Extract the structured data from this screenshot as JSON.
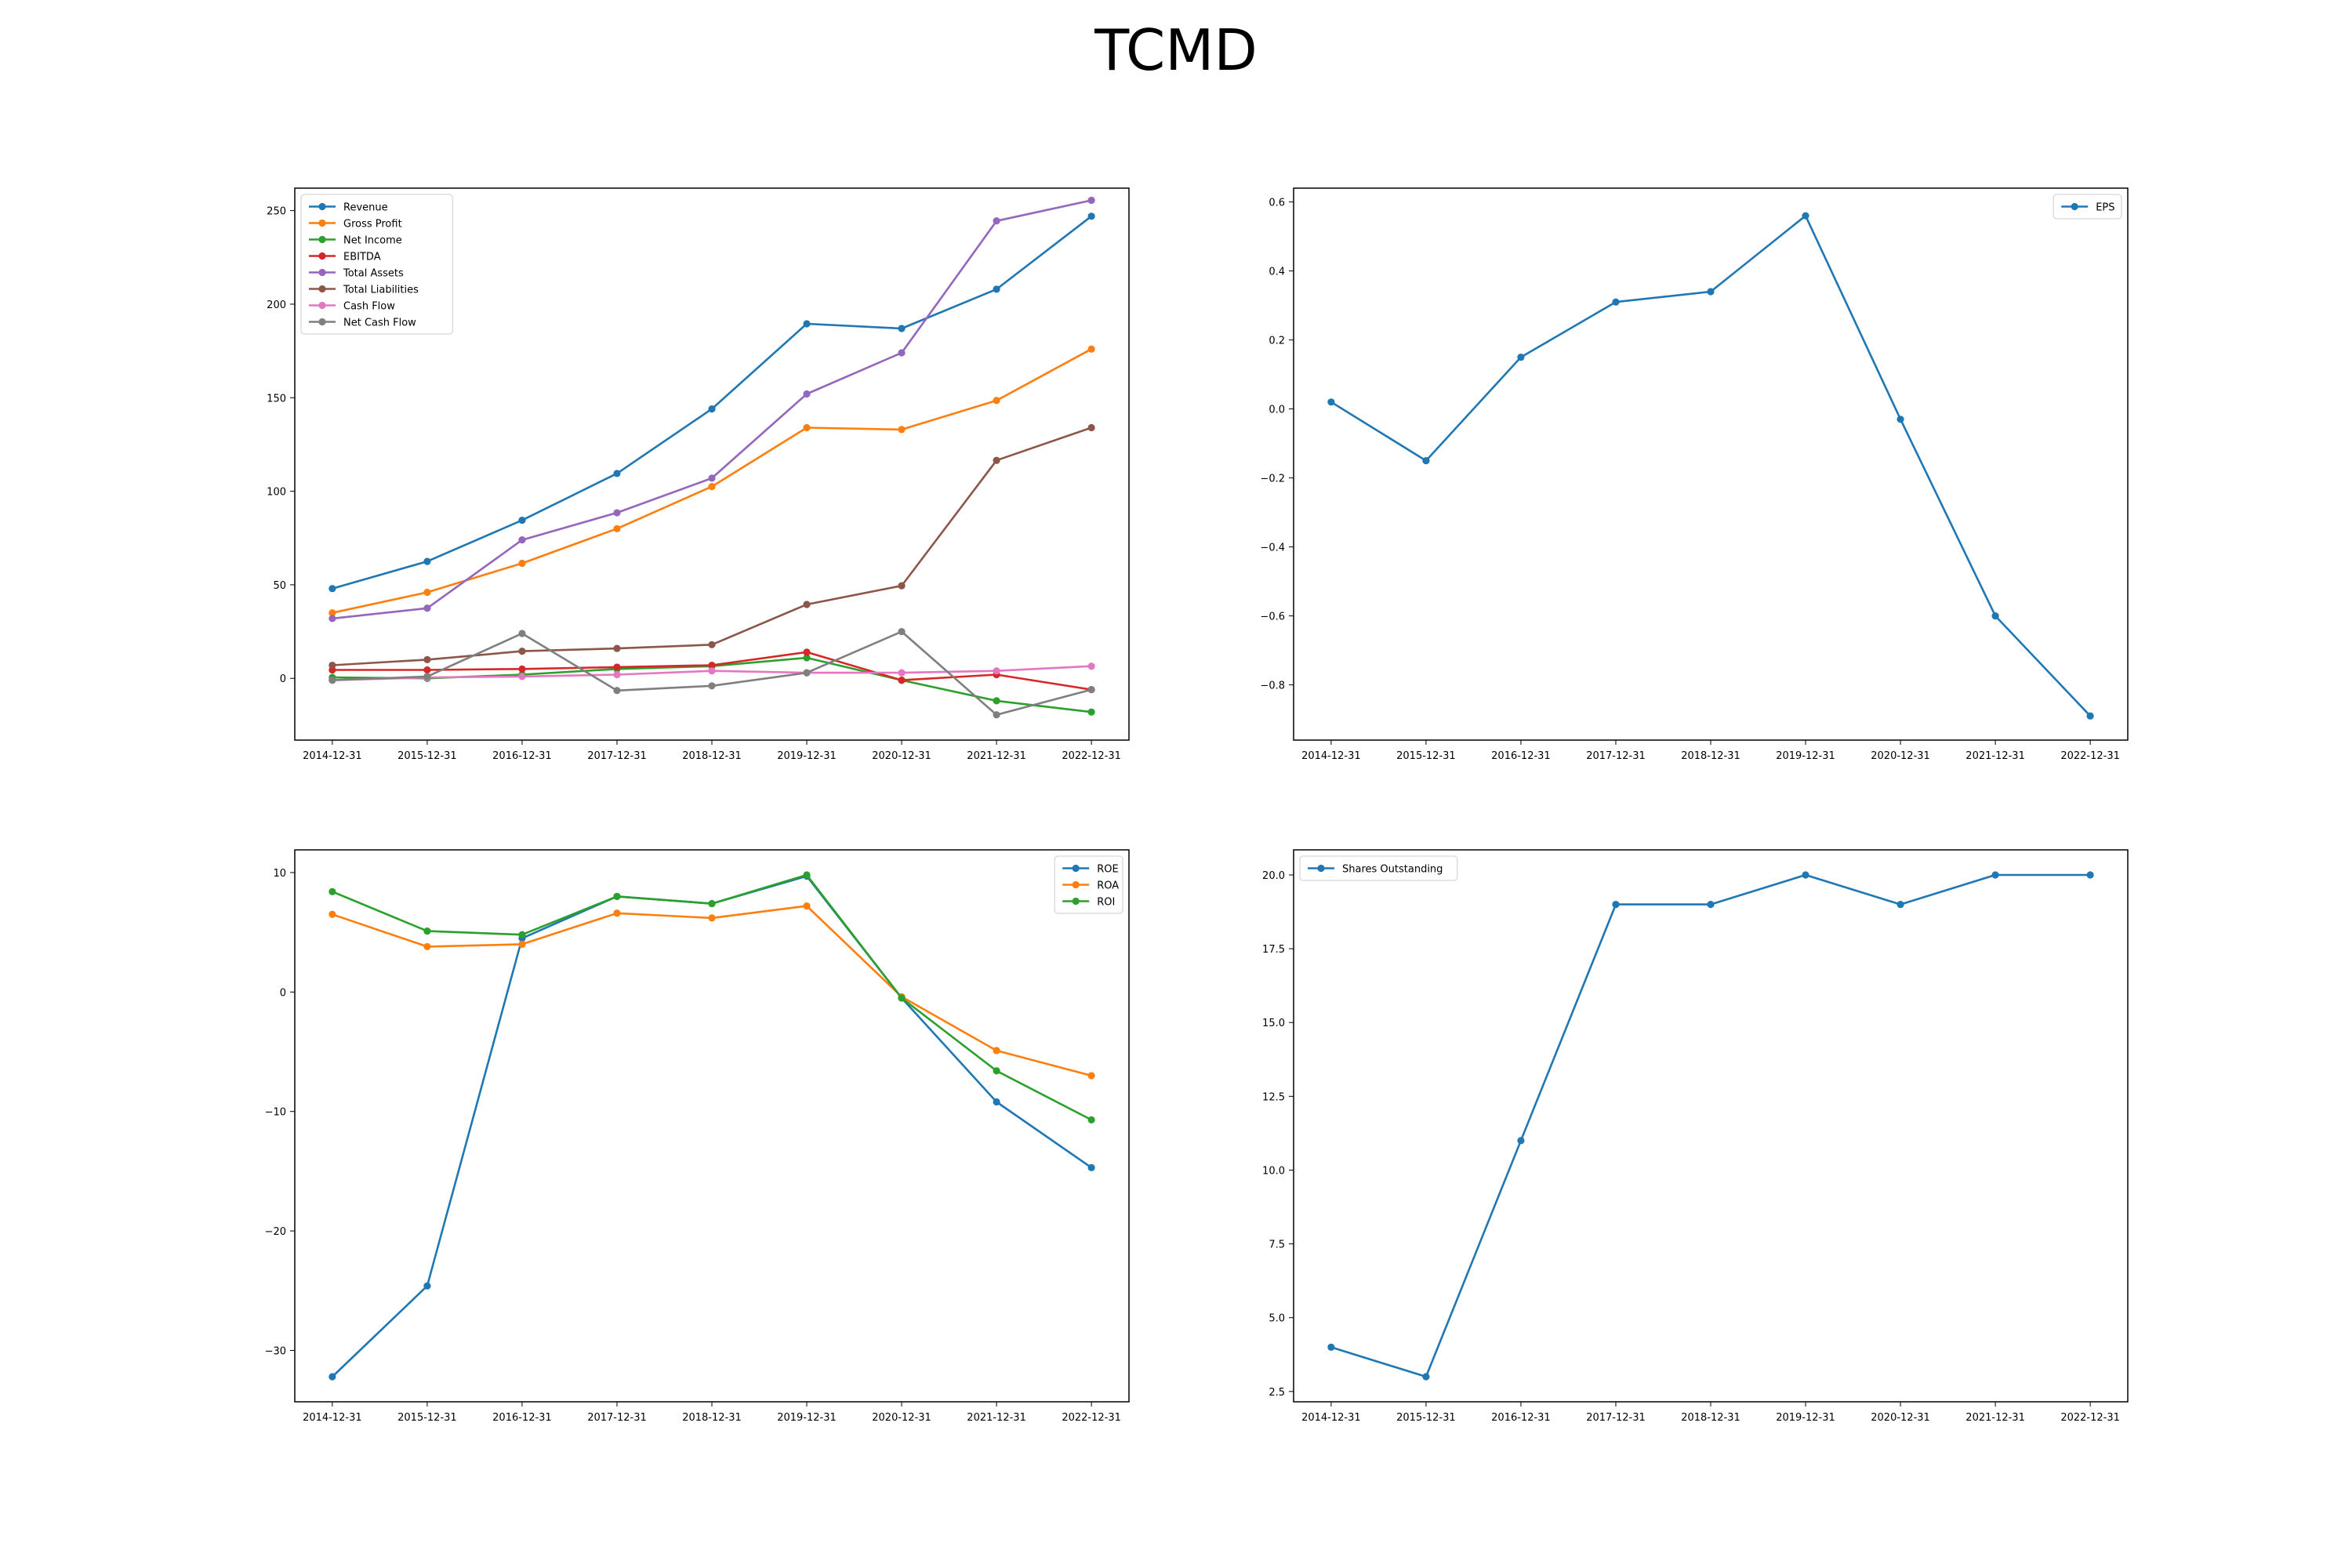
{
  "page_title": "TCMD",
  "chart_data": [
    {
      "type": "line",
      "x": [
        "2014-12-31",
        "2015-12-31",
        "2016-12-31",
        "2017-12-31",
        "2018-12-31",
        "2019-12-31",
        "2020-12-31",
        "2021-12-31",
        "2022-12-31"
      ],
      "ylim": [
        -33,
        262
      ],
      "yticks": [
        0,
        50,
        100,
        150,
        200,
        250
      ],
      "ytick_labels": [
        "0",
        "50",
        "100",
        "150",
        "200",
        "250"
      ],
      "legend": "top-left",
      "grid": false,
      "series": [
        {
          "name": "Revenue",
          "color": "#1f77b4",
          "values": [
            48,
            62.5,
            84.5,
            109.5,
            144,
            189.5,
            187,
            208,
            247
          ]
        },
        {
          "name": "Gross Profit",
          "color": "#ff7f0e",
          "values": [
            35,
            46,
            61.5,
            80,
            102.5,
            134,
            133,
            148.5,
            176
          ]
        },
        {
          "name": "Net Income",
          "color": "#2ca02c",
          "values": [
            0.5,
            0,
            2,
            5,
            6.5,
            11,
            -1,
            -12,
            -18
          ]
        },
        {
          "name": "EBITDA",
          "color": "#d62728",
          "values": [
            4.5,
            4.5,
            5,
            6,
            7,
            14,
            -1,
            2,
            -6
          ]
        },
        {
          "name": "Total Assets",
          "color": "#9467bd",
          "values": [
            32,
            37.5,
            74,
            88.5,
            107,
            152,
            174,
            244.5,
            255.5
          ]
        },
        {
          "name": "Total Liabilities",
          "color": "#8c564b",
          "values": [
            7,
            10,
            14.5,
            16,
            18,
            39.5,
            49.5,
            116.5,
            134
          ]
        },
        {
          "name": "Cash Flow",
          "color": "#e377c2",
          "values": [
            -1,
            0.5,
            1,
            2,
            4,
            3,
            3,
            4,
            6.5
          ]
        },
        {
          "name": "Net Cash Flow",
          "color": "#7f7f7f",
          "values": [
            -1,
            1,
            24,
            -6.5,
            -4,
            3,
            25,
            -19.5,
            -6
          ]
        }
      ]
    },
    {
      "type": "line",
      "x": [
        "2014-12-31",
        "2015-12-31",
        "2016-12-31",
        "2017-12-31",
        "2018-12-31",
        "2019-12-31",
        "2020-12-31",
        "2021-12-31",
        "2022-12-31"
      ],
      "ylim": [
        -0.96,
        0.64
      ],
      "yticks": [
        -0.8,
        -0.6,
        -0.4,
        -0.2,
        0.0,
        0.2,
        0.4,
        0.6
      ],
      "ytick_labels": [
        "−0.8",
        "−0.6",
        "−0.4",
        "−0.2",
        "0.0",
        "0.2",
        "0.4",
        "0.6"
      ],
      "legend": "top-right",
      "grid": false,
      "series": [
        {
          "name": "EPS",
          "color": "#1f77b4",
          "values": [
            0.02,
            -0.15,
            0.15,
            0.31,
            0.34,
            0.56,
            -0.03,
            -0.6,
            -0.89
          ]
        }
      ]
    },
    {
      "type": "line",
      "x": [
        "2014-12-31",
        "2015-12-31",
        "2016-12-31",
        "2017-12-31",
        "2018-12-31",
        "2019-12-31",
        "2020-12-31",
        "2021-12-31",
        "2022-12-31"
      ],
      "ylim": [
        -34.3,
        11.9
      ],
      "yticks": [
        -30,
        -20,
        -10,
        0,
        10
      ],
      "ytick_labels": [
        "−30",
        "−20",
        "−10",
        "0",
        "10"
      ],
      "legend": "top-right",
      "grid": false,
      "series": [
        {
          "name": "ROE",
          "color": "#1f77b4",
          "values": [
            -32.2,
            -24.6,
            4.5,
            8,
            7.4,
            9.7,
            -0.5,
            -9.2,
            -14.7
          ]
        },
        {
          "name": "ROA",
          "color": "#ff7f0e",
          "values": [
            6.5,
            3.8,
            4,
            6.6,
            6.2,
            7.2,
            -0.4,
            -4.9,
            -7
          ]
        },
        {
          "name": "ROI",
          "color": "#2ca02c",
          "values": [
            8.4,
            5.1,
            4.8,
            8,
            7.4,
            9.8,
            -0.5,
            -6.6,
            -10.7
          ]
        }
      ]
    },
    {
      "type": "line",
      "x": [
        "2014-12-31",
        "2015-12-31",
        "2016-12-31",
        "2017-12-31",
        "2018-12-31",
        "2019-12-31",
        "2020-12-31",
        "2021-12-31",
        "2022-12-31"
      ],
      "ylim": [
        2.15,
        20.85
      ],
      "yticks": [
        2.5,
        5.0,
        7.5,
        10.0,
        12.5,
        15.0,
        17.5,
        20.0
      ],
      "ytick_labels": [
        "2.5",
        "5.0",
        "7.5",
        "10.0",
        "12.5",
        "15.0",
        "17.5",
        "20.0"
      ],
      "legend": "top-left",
      "grid": false,
      "series": [
        {
          "name": "Shares Outstanding",
          "color": "#1f77b4",
          "values": [
            4,
            3,
            11,
            19,
            19,
            20,
            19,
            20,
            20
          ]
        }
      ]
    }
  ]
}
